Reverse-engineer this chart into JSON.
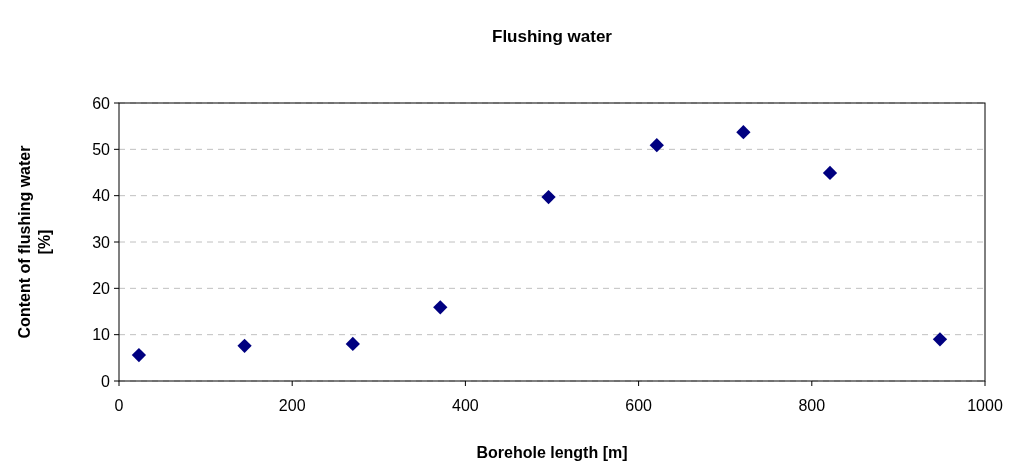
{
  "chart_data": {
    "type": "scatter",
    "title": "Flushing water",
    "xlabel": "Borehole length [m]",
    "ylabel": "Content of flushing water [%]",
    "x": [
      23,
      145,
      270,
      371,
      496,
      621,
      721,
      821,
      948
    ],
    "series": [
      {
        "color": "#000080",
        "values": [
          5.6,
          7.6,
          8.0,
          15.9,
          39.7,
          50.9,
          53.7,
          44.9,
          9.0
        ]
      }
    ],
    "xlim": [
      0,
      1000
    ],
    "xticks": [
      0,
      200,
      400,
      600,
      800,
      1000
    ],
    "ylim": [
      0,
      60
    ],
    "yticks": [
      0,
      10,
      20,
      30,
      40,
      50,
      60
    ],
    "grid": "y",
    "marker": "diamond"
  }
}
